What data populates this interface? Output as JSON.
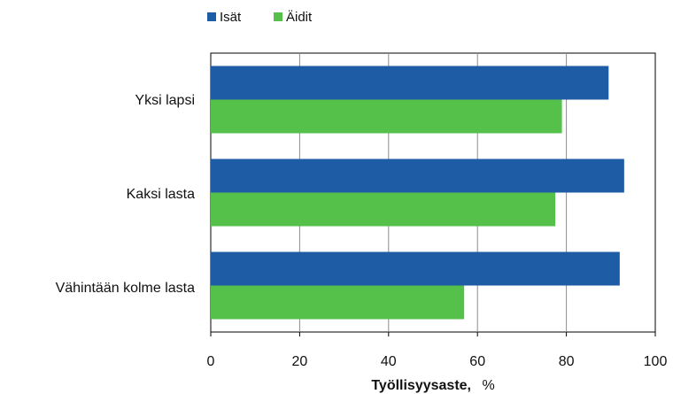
{
  "chart_data": {
    "type": "bar",
    "orientation": "horizontal",
    "categories": [
      "Yksi lapsi",
      "Kaksi lasta",
      "Vähintään kolme lasta"
    ],
    "series": [
      {
        "name": "Isät",
        "color": "#1f5ca6",
        "values": [
          89.5,
          93,
          92
        ]
      },
      {
        "name": "Äidit",
        "color": "#55c14b",
        "values": [
          79,
          77.5,
          57
        ]
      }
    ],
    "xlabel": "Työllisyysaste,",
    "xlabel_unit": "%",
    "xlim": [
      0,
      100
    ],
    "x_ticks": [
      "0",
      "20",
      "40",
      "60",
      "80",
      "100"
    ],
    "grid": true,
    "legend_position": "top-left"
  }
}
